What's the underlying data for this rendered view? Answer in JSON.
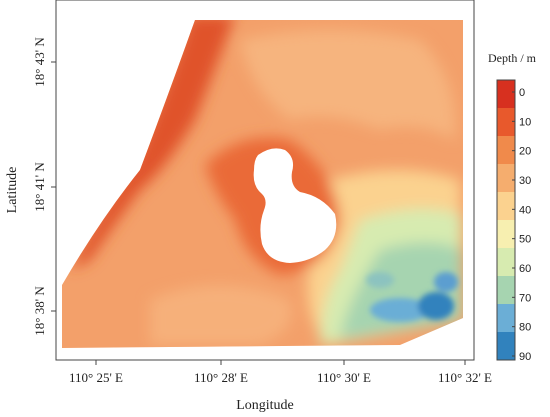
{
  "x_axis": {
    "title": "Longitude",
    "ticks": [
      "110° 25' E",
      "110° 28' E",
      "110° 30' E",
      "110° 32' E"
    ]
  },
  "y_axis": {
    "title": "Latitude",
    "ticks": [
      "18° 43' N",
      "18° 41' N",
      "18° 38' N"
    ]
  },
  "colorbar": {
    "title": "Depth / m",
    "levels": [
      "0",
      "10",
      "20",
      "30",
      "40",
      "50",
      "60",
      "70",
      "80",
      "90"
    ],
    "colors": [
      "#d7301f",
      "#e8592c",
      "#f08a4b",
      "#f5ad6e",
      "#fbd28f",
      "#f7efb0",
      "#d7ebb0",
      "#a6d4b0",
      "#6baed6",
      "#3182bd"
    ]
  },
  "map": {
    "island": "white (no data)",
    "shallow_color": "#d7301f",
    "mid_color": "#f5ad6e",
    "deep_color": "#3182bd"
  }
}
